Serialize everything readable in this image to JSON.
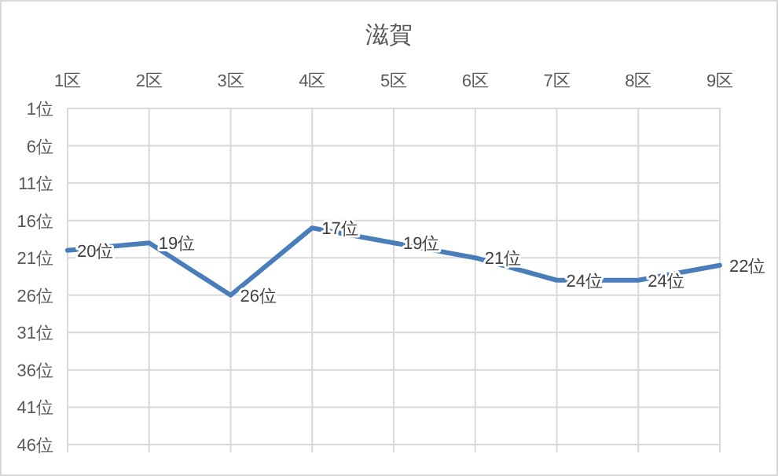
{
  "chart_data": {
    "type": "line",
    "title": "滋賀",
    "categories": [
      "1区",
      "2区",
      "3区",
      "4区",
      "5区",
      "6区",
      "7区",
      "8区",
      "9区"
    ],
    "series": [
      {
        "color": "#4a7ebb",
        "values": [
          20,
          19,
          26,
          17,
          19,
          21,
          24,
          24,
          22
        ],
        "value_labels": [
          "20位",
          "19位",
          "26位",
          "17位",
          "19位",
          "21位",
          "24位",
          "24位",
          "22位"
        ]
      }
    ],
    "ylim": [
      46,
      1
    ],
    "yticks": [
      {
        "value": 1,
        "label": "1位"
      },
      {
        "value": 6,
        "label": "6位"
      },
      {
        "value": 11,
        "label": "11位"
      },
      {
        "value": 16,
        "label": "16位"
      },
      {
        "value": 21,
        "label": "21位"
      },
      {
        "value": 26,
        "label": "26位"
      },
      {
        "value": 31,
        "label": "31位"
      },
      {
        "value": 36,
        "label": "36位"
      },
      {
        "value": 41,
        "label": "41位"
      },
      {
        "value": 46,
        "label": "46位"
      }
    ],
    "grid": true,
    "marker": "none",
    "line_style": "solid"
  }
}
